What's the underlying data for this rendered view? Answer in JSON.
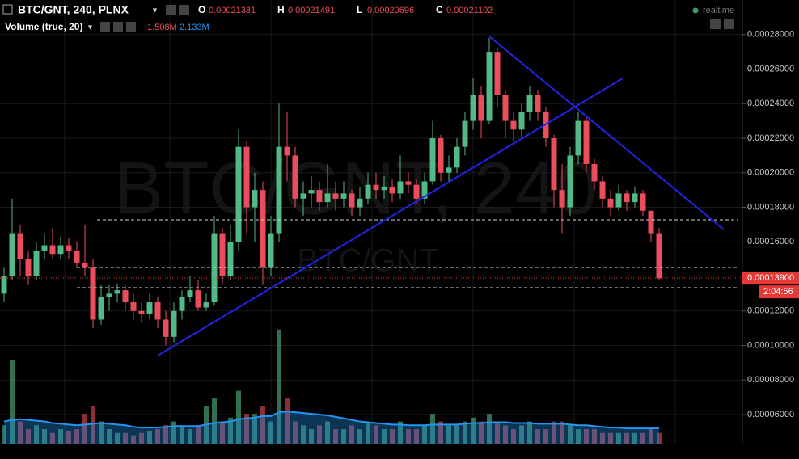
{
  "chart_data": {
    "type": "candlestick",
    "symbol": "BTC/GNT, 240, PLNX",
    "ohlc_legend": [
      {
        "key": "O",
        "value": 0.00021331
      },
      {
        "key": "H",
        "value": 0.00021491
      },
      {
        "key": "L",
        "value": 0.00020696
      },
      {
        "key": "C",
        "value": 0.00021102
      }
    ],
    "watermark": "BTC/GNT, 240",
    "watermark_sub": "BTC/GNT",
    "status": "realtime",
    "open": [
      0.00013,
      0.00014,
      0.000165,
      0.00015,
      0.00014,
      0.000155,
      0.000158,
      0.000153,
      0.000158,
      0.000155,
      0.000148,
      0.000145,
      0.000115,
      0.000128,
      0.00013,
      0.000132,
      0.000125,
      0.00012,
      0.000118,
      0.000125,
      0.000115,
      0.000105,
      0.00012,
      0.000128,
      0.000132,
      0.000122,
      0.000125,
      0.000165,
      0.00014,
      0.00016,
      0.000215,
      0.00018,
      0.00019,
      0.000145,
      0.000165,
      0.000215,
      0.00021,
      0.000185,
      0.000188,
      0.00019,
      0.000183,
      0.000188,
      0.000185,
      0.000188,
      0.00018,
      0.000185,
      0.000193,
      0.00019,
      0.000192,
      0.000188,
      0.000195,
      0.000193,
      0.000185,
      0.000195,
      0.00022,
      0.0002,
      0.000203,
      0.000215,
      0.00023,
      0.000245,
      0.00023,
      0.00027,
      0.000245,
      0.00023,
      0.000225,
      0.000235,
      0.000245,
      0.000235,
      0.00022,
      0.00019,
      0.00018,
      0.00021,
      0.00023,
      0.000205,
      0.000195,
      0.000185,
      0.00018,
      0.000188,
      0.000183,
      0.000188,
      0.000178,
      0.000165
    ],
    "high": [
      0.000145,
      0.000185,
      0.00017,
      0.000155,
      0.00016,
      0.000165,
      0.000168,
      0.000163,
      0.000162,
      0.00016,
      0.00017,
      0.00015,
      0.000135,
      0.000135,
      0.000136,
      0.000135,
      0.00013,
      0.000125,
      0.00013,
      0.000128,
      0.00012,
      0.000125,
      0.000132,
      0.00014,
      0.000138,
      0.00013,
      0.000175,
      0.000168,
      0.00017,
      0.000225,
      0.000218,
      0.0002,
      0.000195,
      0.000175,
      0.00024,
      0.000235,
      0.000215,
      0.000195,
      0.000198,
      0.000195,
      0.000205,
      0.000195,
      0.000195,
      0.00019,
      0.000192,
      0.0002,
      0.0002,
      0.000198,
      0.000196,
      0.00021,
      0.0002,
      0.000196,
      0.0002,
      0.00023,
      0.000222,
      0.00021,
      0.00022,
      0.000235,
      0.000255,
      0.00025,
      0.000278,
      0.000272,
      0.000248,
      0.000235,
      0.00024,
      0.00025,
      0.000248,
      0.000238,
      0.000222,
      0.000205,
      0.000215,
      0.000235,
      0.000232,
      0.000208,
      0.000198,
      0.00019,
      0.000193,
      0.00019,
      0.000192,
      0.00019,
      0.000178,
      0.000168
    ],
    "low": [
      0.000125,
      0.000138,
      0.00014,
      0.000135,
      0.000138,
      0.00015,
      0.00015,
      0.00015,
      0.00015,
      0.000145,
      0.00014,
      0.00011,
      0.000112,
      0.00012,
      0.000125,
      0.00012,
      0.000115,
      0.000113,
      0.000115,
      0.00011,
      0.0001,
      0.000102,
      0.000115,
      0.000125,
      0.00012,
      0.00012,
      0.000123,
      0.000135,
      0.000138,
      0.000155,
      0.000165,
      0.00016,
      0.000135,
      0.00014,
      0.00016,
      0.000195,
      0.00018,
      0.000175,
      0.00018,
      0.000178,
      0.00018,
      0.000178,
      0.00018,
      0.000175,
      0.000175,
      0.000182,
      0.000185,
      0.000185,
      0.000183,
      0.000185,
      0.000188,
      0.000182,
      0.000182,
      0.000193,
      0.000195,
      0.000195,
      0.0002,
      0.00021,
      0.000225,
      0.00022,
      0.000228,
      0.000238,
      0.00022,
      0.000218,
      0.00022,
      0.00023,
      0.00023,
      0.000215,
      0.00018,
      0.000165,
      0.000175,
      0.000205,
      0.0002,
      0.00019,
      0.00018,
      0.000175,
      0.000178,
      0.000178,
      0.00018,
      0.000175,
      0.00016,
      0.000138
    ],
    "close": [
      0.00014,
      0.000165,
      0.00015,
      0.00014,
      0.000155,
      0.000158,
      0.000153,
      0.000158,
      0.000155,
      0.000148,
      0.000145,
      0.000115,
      0.000128,
      0.00013,
      0.000132,
      0.000125,
      0.00012,
      0.000118,
      0.000125,
      0.000115,
      0.000105,
      0.00012,
      0.000128,
      0.000132,
      0.000122,
      0.000125,
      0.000165,
      0.00014,
      0.00016,
      0.000215,
      0.00018,
      0.00019,
      0.000145,
      0.000165,
      0.000215,
      0.00021,
      0.000185,
      0.000188,
      0.00019,
      0.000183,
      0.000188,
      0.000185,
      0.000188,
      0.00018,
      0.000185,
      0.000193,
      0.00019,
      0.000192,
      0.000188,
      0.000195,
      0.000193,
      0.000185,
      0.000195,
      0.00022,
      0.0002,
      0.000203,
      0.000215,
      0.00023,
      0.000245,
      0.00023,
      0.00027,
      0.000245,
      0.00023,
      0.000225,
      0.000235,
      0.000245,
      0.000235,
      0.00022,
      0.00019,
      0.00018,
      0.00021,
      0.00023,
      0.000205,
      0.000195,
      0.000185,
      0.00018,
      0.000188,
      0.000183,
      0.000188,
      0.000178,
      0.000165,
      0.000139
    ],
    "up_color": "#53b987",
    "down_color": "#eb4d5c",
    "ylim": [
      4.27e-05,
      0.0003
    ],
    "yticks": [
      {
        "value": 6e-05,
        "label": "0.00006000"
      },
      {
        "value": 8e-05,
        "label": "0.00008000"
      },
      {
        "value": 0.0001,
        "label": "0.00010000"
      },
      {
        "value": 0.00012,
        "label": "0.00012000"
      },
      {
        "value": 0.00014,
        "label": "0.00014000"
      },
      {
        "value": 0.00016,
        "label": "0.00016000"
      },
      {
        "value": 0.00018,
        "label": "0.00018000"
      },
      {
        "value": 0.0002,
        "label": "0.00020000"
      },
      {
        "value": 0.00022,
        "label": "0.00022000"
      },
      {
        "value": 0.00024,
        "label": "0.00024000"
      },
      {
        "value": 0.00026,
        "label": "0.00026000"
      },
      {
        "value": 0.00028,
        "label": "0.00028000"
      }
    ],
    "last_price": {
      "value": 0.000139,
      "label": "0.00013900"
    },
    "countdown": "2:04:56",
    "volume": {
      "name": "Volume (true, 20)",
      "values": [
        2.5,
        11,
        3,
        2,
        2.5,
        2,
        1.5,
        2,
        1.8,
        2,
        4,
        5,
        3,
        2,
        1.5,
        1.5,
        1.2,
        1.5,
        1.8,
        2,
        2.5,
        3,
        2.5,
        2,
        2.5,
        5,
        6,
        3,
        3.5,
        7,
        4,
        4,
        5,
        3,
        15,
        6,
        3,
        2.5,
        2,
        2.5,
        3,
        2,
        2,
        2.5,
        2,
        3,
        2.5,
        2,
        2,
        3,
        2,
        2,
        2.5,
        4,
        3,
        2.5,
        2.5,
        3,
        3.5,
        3,
        4,
        3,
        2.5,
        2,
        2.5,
        3,
        2,
        2,
        3,
        3,
        2.5,
        2,
        2,
        2,
        1.5,
        1.5,
        1.5,
        1.5,
        1.5,
        1.5,
        2,
        1.508
      ],
      "ma": [
        3.0,
        3.2,
        3.3,
        3.2,
        3.1,
        3.0,
        2.8,
        2.7,
        2.6,
        2.5,
        2.6,
        2.7,
        2.8,
        2.7,
        2.6,
        2.5,
        2.3,
        2.2,
        2.2,
        2.2,
        2.3,
        2.4,
        2.4,
        2.4,
        2.4,
        2.6,
        2.8,
        2.9,
        3.0,
        3.3,
        3.4,
        3.5,
        3.7,
        3.7,
        4.2,
        4.3,
        4.2,
        4.1,
        4.0,
        3.9,
        3.8,
        3.6,
        3.4,
        3.2,
        3.0,
        2.9,
        2.8,
        2.7,
        2.6,
        2.6,
        2.5,
        2.5,
        2.5,
        2.6,
        2.6,
        2.6,
        2.6,
        2.7,
        2.8,
        2.8,
        2.9,
        2.9,
        2.9,
        2.8,
        2.8,
        2.8,
        2.7,
        2.7,
        2.7,
        2.7,
        2.6,
        2.5,
        2.5,
        2.4,
        2.3,
        2.2,
        2.2,
        2.1,
        2.1,
        2.1,
        2.1,
        2.133
      ],
      "vlim": [
        0,
        58
      ],
      "last": {
        "value": 1.508,
        "label": "1.508M"
      },
      "ma_last": {
        "value": 2.133,
        "label": "2.133M"
      },
      "ma_color": "#2196f3"
    }
  }
}
